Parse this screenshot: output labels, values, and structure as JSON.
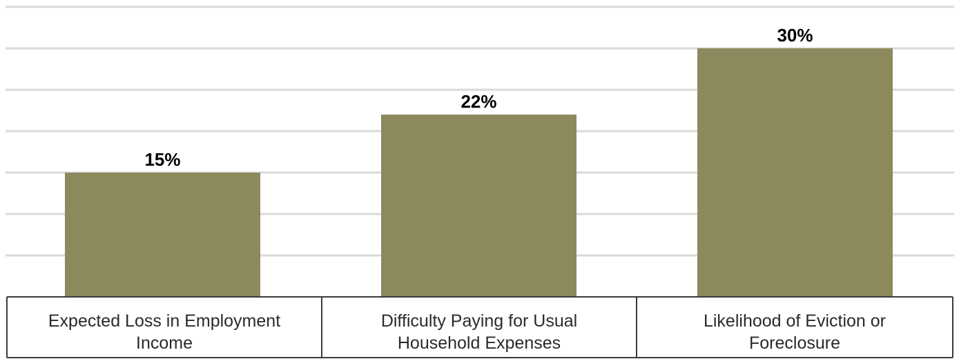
{
  "chart_data": {
    "type": "bar",
    "categories": [
      [
        "Expected Loss in Employment",
        "Income"
      ],
      [
        "Difficulty Paying for Usual",
        "Household Expenses"
      ],
      [
        "Likelihood of Eviction or",
        "Foreclosure"
      ]
    ],
    "values": [
      15,
      22,
      30
    ],
    "data_labels": [
      "15%",
      "22%",
      "30%"
    ],
    "ylim": [
      0,
      35
    ],
    "grid": true,
    "bar_color": "#8c8a5c",
    "grid_color": "#d9d9d9"
  }
}
